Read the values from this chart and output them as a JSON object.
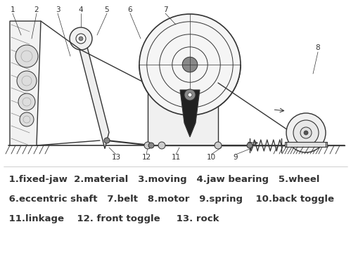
{
  "background_color": "#ffffff",
  "line_color": "#333333",
  "legend_lines": [
    " 1.fixed-jaw  2.material   3.moving   4.jaw bearing   5.wheel",
    " 6.eccentric shaft   7.belt   8.motor   9.spring    10.back toggle",
    " 11.linkage    12. front toggle     13. rock"
  ],
  "legend_fontsize": 9.5,
  "figure_width": 4.99,
  "figure_height": 3.63,
  "dpi": 100
}
